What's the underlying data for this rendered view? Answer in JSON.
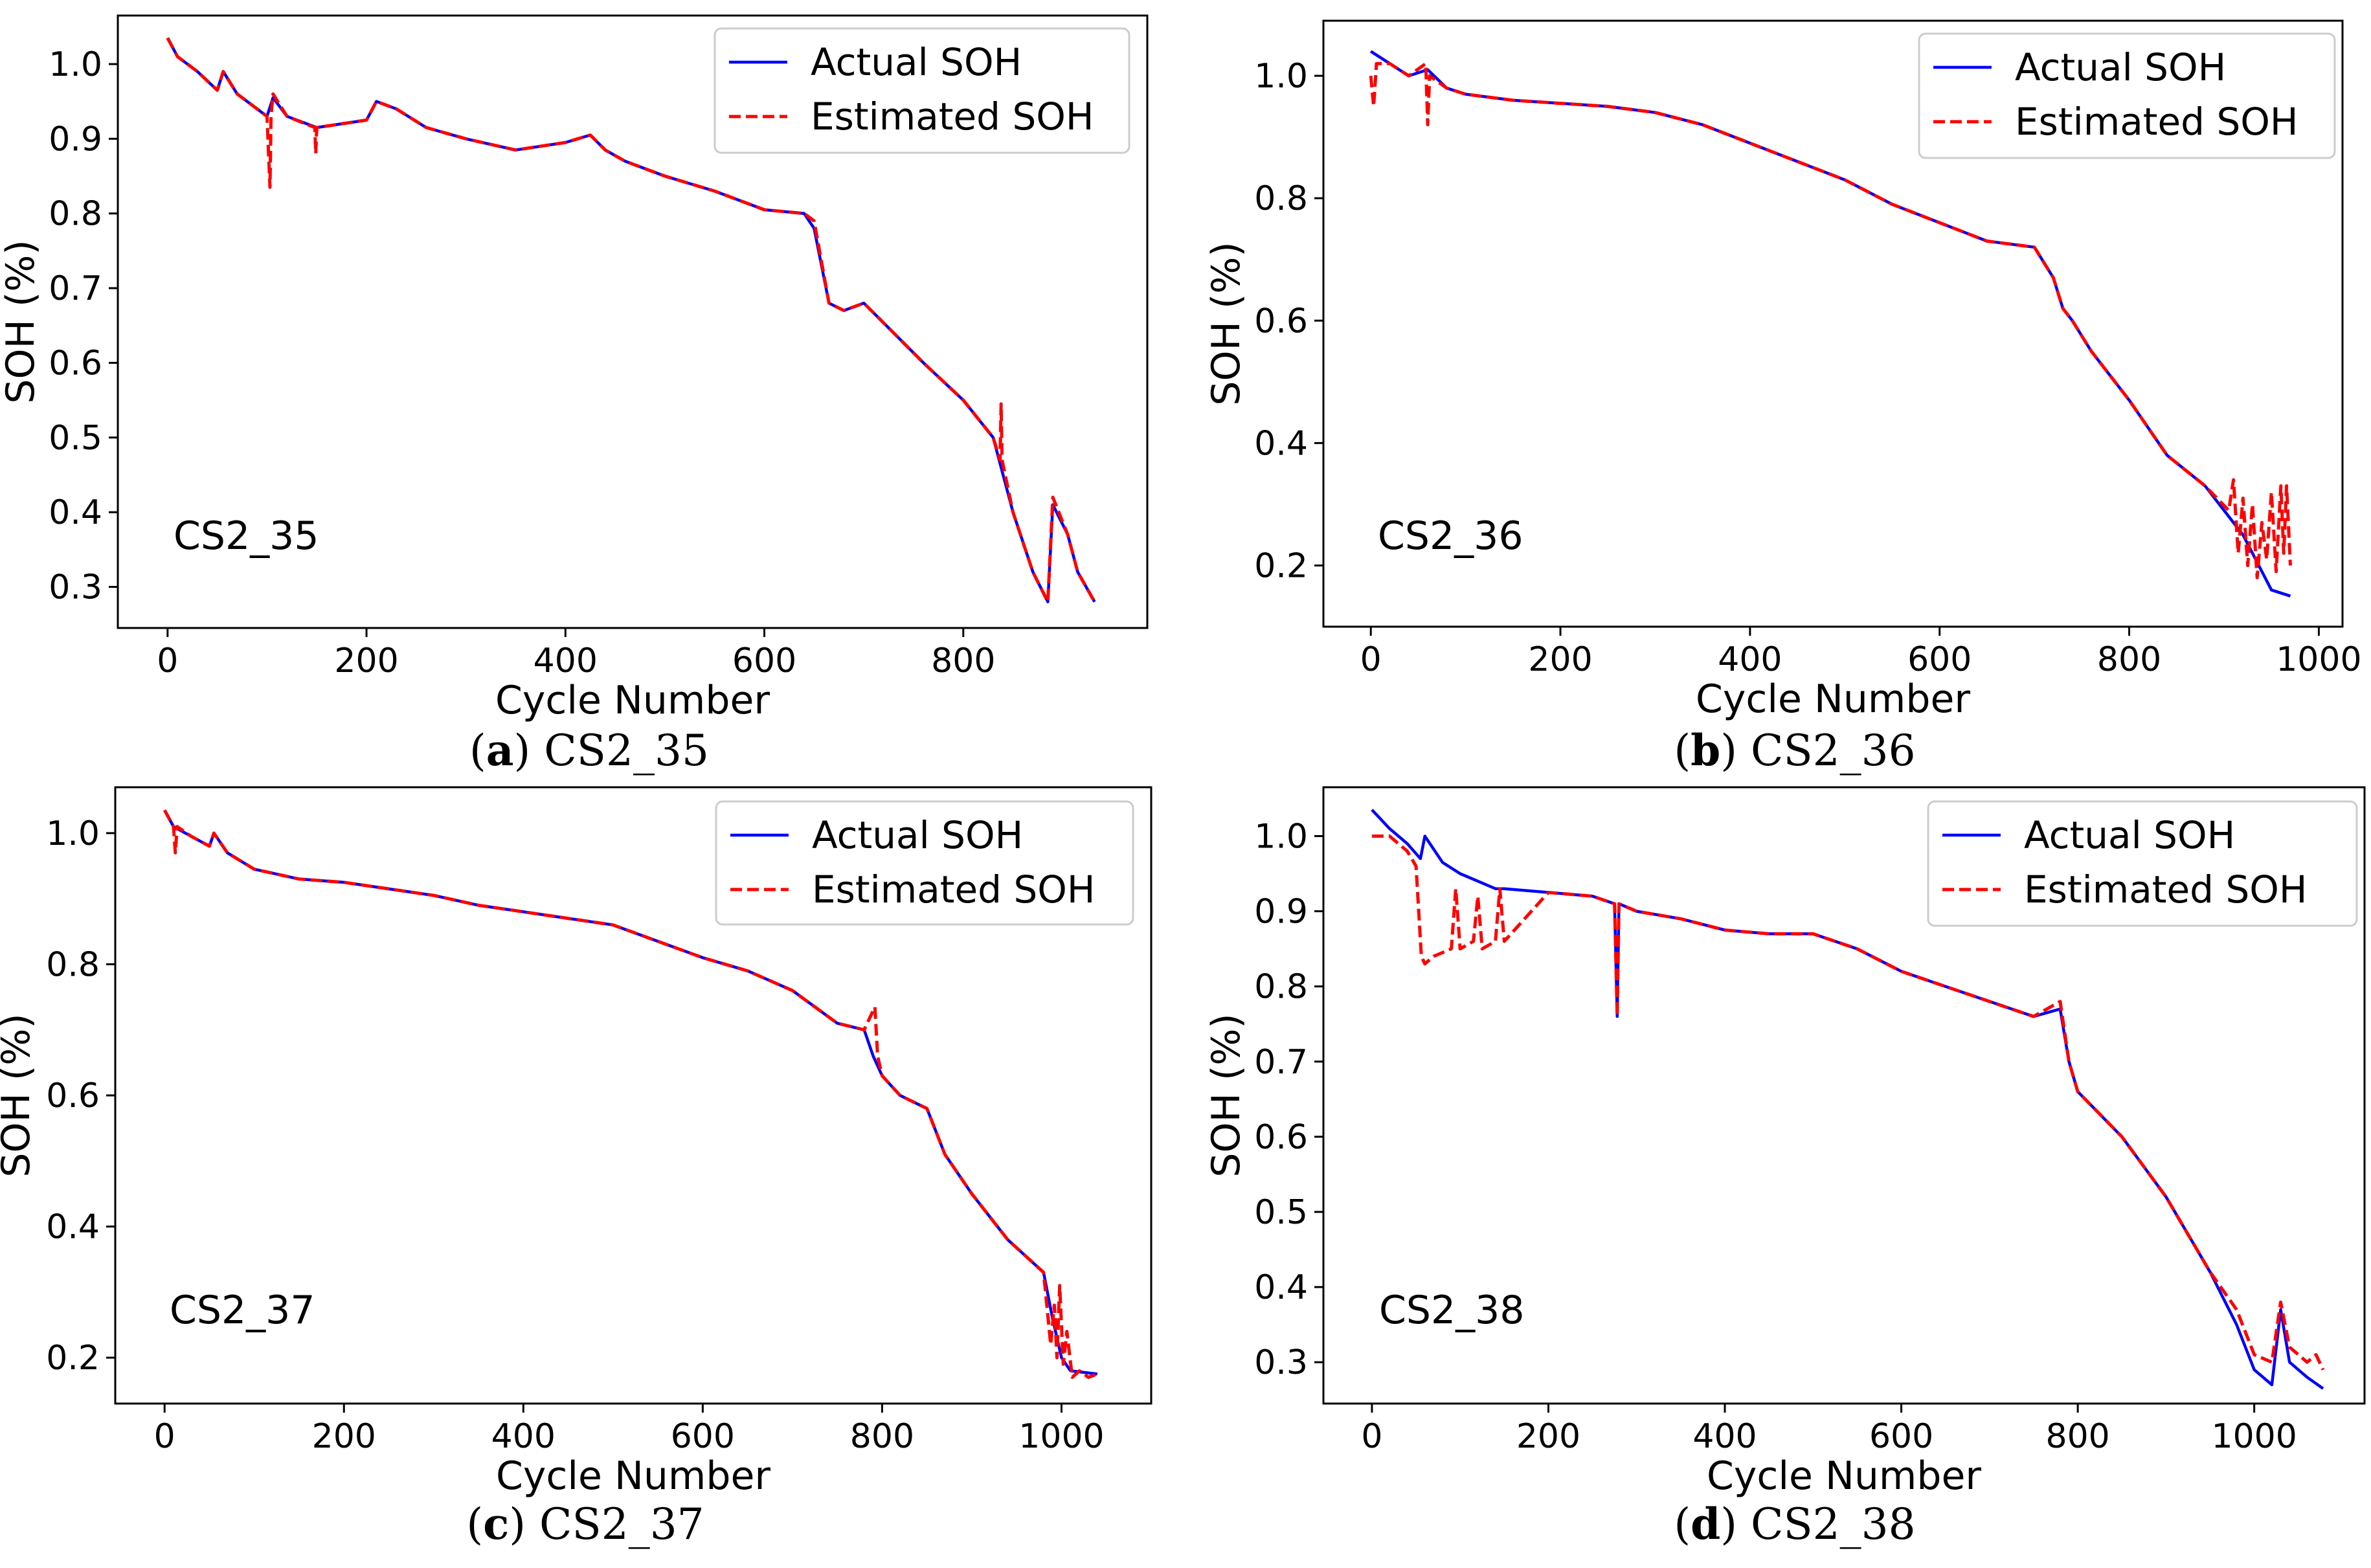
{
  "legend": {
    "actual": "Actual SOH",
    "estimated": "Estimated SOH"
  },
  "colors": {
    "actual": "#0000ff",
    "estimated": "#ff0000",
    "axis": "#000000"
  },
  "chart_data": [
    {
      "type": "line",
      "panel_label": "a",
      "caption": "CS2_35",
      "annotation": "CS2_35",
      "xlabel": "Cycle Number",
      "ylabel": "SOH (%)",
      "xlim": [
        -50,
        985
      ],
      "ylim": [
        0.245,
        1.065
      ],
      "xticks": [
        0,
        200,
        400,
        600,
        800
      ],
      "yticks": [
        0.3,
        0.4,
        0.5,
        0.6,
        0.7,
        0.8,
        0.9,
        1.0
      ],
      "ytick_labels": [
        "0.3",
        "0.4",
        "0.5",
        "0.6",
        "0.7",
        "0.8",
        "0.9",
        "1.0"
      ],
      "legend_position": "upper right",
      "series": [
        {
          "name": "Actual SOH",
          "x": [
            0,
            10,
            30,
            50,
            56,
            70,
            100,
            106,
            120,
            150,
            200,
            210,
            230,
            260,
            300,
            350,
            400,
            425,
            440,
            460,
            500,
            550,
            600,
            640,
            650,
            665,
            680,
            700,
            730,
            760,
            800,
            830,
            850,
            870,
            885,
            890,
            905,
            915,
            932
          ],
          "y": [
            1.035,
            1.01,
            0.99,
            0.965,
            0.99,
            0.96,
            0.93,
            0.955,
            0.93,
            0.915,
            0.925,
            0.95,
            0.94,
            0.915,
            0.9,
            0.885,
            0.895,
            0.905,
            0.885,
            0.87,
            0.85,
            0.83,
            0.805,
            0.8,
            0.78,
            0.68,
            0.67,
            0.68,
            0.64,
            0.6,
            0.55,
            0.5,
            0.4,
            0.32,
            0.28,
            0.41,
            0.37,
            0.32,
            0.28
          ]
        },
        {
          "name": "Estimated SOH",
          "x": [
            0,
            10,
            30,
            50,
            56,
            70,
            100,
            103,
            104,
            106,
            120,
            148,
            149,
            150,
            200,
            210,
            230,
            260,
            300,
            350,
            400,
            425,
            440,
            460,
            500,
            550,
            600,
            640,
            650,
            665,
            680,
            700,
            730,
            760,
            800,
            830,
            837,
            838,
            839,
            850,
            870,
            885,
            890,
            905,
            915,
            932
          ],
          "y": [
            1.035,
            1.01,
            0.99,
            0.965,
            0.99,
            0.96,
            0.93,
            0.835,
            0.93,
            0.96,
            0.93,
            0.915,
            0.88,
            0.915,
            0.925,
            0.95,
            0.94,
            0.915,
            0.9,
            0.885,
            0.895,
            0.905,
            0.885,
            0.87,
            0.85,
            0.83,
            0.805,
            0.8,
            0.79,
            0.68,
            0.67,
            0.68,
            0.64,
            0.6,
            0.55,
            0.5,
            0.47,
            0.545,
            0.47,
            0.4,
            0.32,
            0.28,
            0.42,
            0.37,
            0.32,
            0.28
          ]
        }
      ]
    },
    {
      "type": "line",
      "panel_label": "b",
      "caption": "CS2_36",
      "annotation": "CS2_36",
      "xlabel": "Cycle Number",
      "ylabel": "SOH (%)",
      "xlim": [
        -50,
        1025
      ],
      "ylim": [
        0.1,
        1.09
      ],
      "xticks": [
        0,
        200,
        400,
        600,
        800,
        1000
      ],
      "yticks": [
        0.2,
        0.4,
        0.6,
        0.8,
        1.0
      ],
      "ytick_labels": [
        "0.2",
        "0.4",
        "0.6",
        "0.8",
        "1.0"
      ],
      "legend_position": "upper right",
      "series": [
        {
          "name": "Actual SOH",
          "x": [
            0,
            20,
            40,
            60,
            80,
            100,
            150,
            200,
            250,
            300,
            350,
            400,
            450,
            500,
            550,
            600,
            650,
            700,
            720,
            730,
            740,
            760,
            800,
            840,
            880,
            920,
            950,
            970
          ],
          "y": [
            1.04,
            1.02,
            1.0,
            1.01,
            0.98,
            0.97,
            0.96,
            0.955,
            0.95,
            0.94,
            0.92,
            0.89,
            0.86,
            0.83,
            0.79,
            0.76,
            0.73,
            0.72,
            0.67,
            0.62,
            0.6,
            0.55,
            0.47,
            0.38,
            0.33,
            0.25,
            0.16,
            0.15
          ]
        },
        {
          "name": "Estimated SOH",
          "x": [
            0,
            3,
            6,
            20,
            40,
            58,
            60,
            62,
            80,
            100,
            150,
            200,
            250,
            300,
            350,
            400,
            450,
            500,
            550,
            600,
            650,
            700,
            720,
            730,
            740,
            760,
            800,
            840,
            880,
            905,
            910,
            915,
            920,
            925,
            930,
            935,
            940,
            945,
            950,
            955,
            960,
            963,
            966,
            970
          ],
          "y": [
            1.0,
            0.95,
            1.02,
            1.02,
            1.0,
            1.02,
            0.92,
            1.0,
            0.98,
            0.97,
            0.96,
            0.955,
            0.95,
            0.94,
            0.92,
            0.89,
            0.86,
            0.83,
            0.79,
            0.76,
            0.73,
            0.72,
            0.67,
            0.62,
            0.6,
            0.55,
            0.47,
            0.38,
            0.33,
            0.29,
            0.34,
            0.22,
            0.31,
            0.2,
            0.3,
            0.18,
            0.27,
            0.21,
            0.32,
            0.19,
            0.33,
            0.22,
            0.33,
            0.2
          ]
        }
      ]
    },
    {
      "type": "line",
      "panel_label": "c",
      "caption": "CS2_37",
      "annotation": "CS2_37",
      "xlabel": "Cycle Number",
      "ylabel": "SOH (%)",
      "xlim": [
        -55,
        1100
      ],
      "ylim": [
        0.13,
        1.07
      ],
      "xticks": [
        0,
        200,
        400,
        600,
        800,
        1000
      ],
      "yticks": [
        0.2,
        0.4,
        0.6,
        0.8,
        1.0
      ],
      "ytick_labels": [
        "0.2",
        "0.4",
        "0.6",
        "0.8",
        "1.0"
      ],
      "legend_position": "upper right",
      "series": [
        {
          "name": "Actual SOH",
          "x": [
            0,
            10,
            30,
            50,
            55,
            70,
            100,
            150,
            200,
            250,
            300,
            350,
            400,
            450,
            500,
            550,
            600,
            650,
            700,
            750,
            780,
            790,
            800,
            820,
            850,
            870,
            900,
            940,
            980,
            990,
            1000,
            1010,
            1040
          ],
          "y": [
            1.035,
            1.01,
            0.995,
            0.98,
            1.0,
            0.97,
            0.945,
            0.93,
            0.925,
            0.915,
            0.905,
            0.89,
            0.88,
            0.87,
            0.86,
            0.835,
            0.81,
            0.79,
            0.76,
            0.71,
            0.7,
            0.66,
            0.63,
            0.6,
            0.58,
            0.51,
            0.45,
            0.38,
            0.33,
            0.26,
            0.2,
            0.18,
            0.175
          ]
        },
        {
          "name": "Estimated SOH",
          "x": [
            0,
            10,
            12,
            14,
            30,
            50,
            55,
            70,
            100,
            150,
            200,
            250,
            300,
            350,
            400,
            450,
            500,
            550,
            600,
            650,
            700,
            750,
            780,
            792,
            795,
            800,
            820,
            850,
            870,
            900,
            940,
            980,
            988,
            992,
            995,
            998,
            1002,
            1006,
            1012,
            1020,
            1030,
            1040
          ],
          "y": [
            1.035,
            1.01,
            0.97,
            1.01,
            0.995,
            0.98,
            1.0,
            0.97,
            0.945,
            0.93,
            0.925,
            0.915,
            0.905,
            0.89,
            0.88,
            0.87,
            0.86,
            0.835,
            0.81,
            0.79,
            0.76,
            0.71,
            0.7,
            0.735,
            0.66,
            0.63,
            0.6,
            0.58,
            0.51,
            0.45,
            0.38,
            0.33,
            0.22,
            0.28,
            0.2,
            0.31,
            0.19,
            0.24,
            0.17,
            0.18,
            0.17,
            0.175
          ]
        }
      ]
    },
    {
      "type": "line",
      "panel_label": "d",
      "caption": "CS2_38",
      "annotation": "CS2_38",
      "xlabel": "Cycle Number",
      "ylabel": "SOH (%)",
      "xlim": [
        -55,
        1125
      ],
      "ylim": [
        0.245,
        1.065
      ],
      "xticks": [
        0,
        200,
        400,
        600,
        800,
        1000
      ],
      "yticks": [
        0.3,
        0.4,
        0.5,
        0.6,
        0.7,
        0.8,
        0.9,
        1.0
      ],
      "ytick_labels": [
        "0.3",
        "0.4",
        "0.5",
        "0.6",
        "0.7",
        "0.8",
        "0.9",
        "1.0"
      ],
      "legend_position": "upper right",
      "series": [
        {
          "name": "Actual SOH",
          "x": [
            0,
            20,
            40,
            55,
            60,
            80,
            100,
            120,
            140,
            150,
            200,
            250,
            275,
            278,
            280,
            300,
            350,
            400,
            450,
            500,
            550,
            600,
            650,
            700,
            750,
            780,
            790,
            800,
            850,
            900,
            950,
            980,
            1000,
            1020,
            1030,
            1040,
            1060,
            1078
          ],
          "y": [
            1.035,
            1.01,
            0.99,
            0.97,
            1.0,
            0.965,
            0.95,
            0.94,
            0.93,
            0.93,
            0.925,
            0.92,
            0.91,
            0.76,
            0.91,
            0.9,
            0.89,
            0.875,
            0.87,
            0.87,
            0.85,
            0.82,
            0.8,
            0.78,
            0.76,
            0.77,
            0.7,
            0.66,
            0.6,
            0.52,
            0.42,
            0.35,
            0.29,
            0.27,
            0.37,
            0.3,
            0.28,
            0.265
          ]
        },
        {
          "name": "Estimated SOH",
          "x": [
            0,
            20,
            40,
            50,
            56,
            60,
            70,
            90,
            95,
            100,
            115,
            120,
            125,
            140,
            145,
            150,
            200,
            250,
            275,
            278,
            280,
            300,
            350,
            400,
            450,
            500,
            550,
            600,
            650,
            700,
            750,
            780,
            790,
            800,
            850,
            900,
            950,
            980,
            1000,
            1020,
            1030,
            1040,
            1060,
            1070,
            1078
          ],
          "y": [
            1.0,
            1.0,
            0.98,
            0.96,
            0.84,
            0.83,
            0.84,
            0.85,
            0.93,
            0.85,
            0.86,
            0.92,
            0.85,
            0.86,
            0.93,
            0.86,
            0.925,
            0.92,
            0.91,
            0.76,
            0.91,
            0.9,
            0.89,
            0.875,
            0.87,
            0.87,
            0.85,
            0.82,
            0.8,
            0.78,
            0.76,
            0.78,
            0.7,
            0.66,
            0.6,
            0.52,
            0.42,
            0.37,
            0.31,
            0.3,
            0.38,
            0.32,
            0.3,
            0.31,
            0.29
          ]
        }
      ]
    }
  ]
}
